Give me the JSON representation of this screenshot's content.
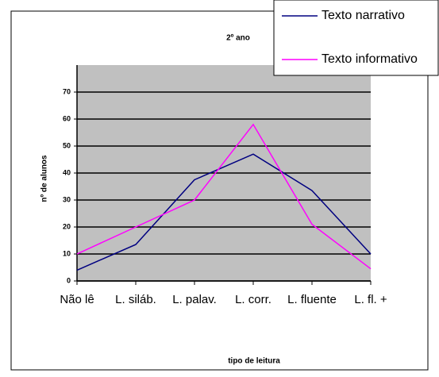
{
  "chart_data": {
    "type": "line",
    "title": "2º ano",
    "xlabel": "tipo de leitura",
    "ylabel": "nº de alunos",
    "categories": [
      "Não lê",
      "L. siláb.",
      "L. palav.",
      "L. corr.",
      "L. fluente",
      "L. fl. +"
    ],
    "series": [
      {
        "name": "Texto narrativo",
        "color": "#000080",
        "values": [
          4,
          13.5,
          37.5,
          47,
          33.5,
          10
        ]
      },
      {
        "name": "Texto informativo",
        "color": "#ff00ff",
        "values": [
          10,
          20,
          30,
          58,
          21,
          4.5
        ]
      }
    ],
    "ylim": [
      0,
      80
    ],
    "yticks": [
      0,
      10,
      20,
      30,
      40,
      50,
      60,
      70
    ],
    "grid": true,
    "legend": "top-right"
  }
}
